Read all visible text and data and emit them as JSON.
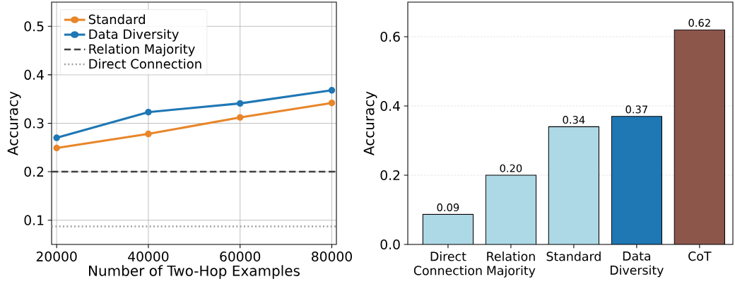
{
  "chart_data": [
    {
      "type": "line",
      "xlabel": "Number of Two-Hop Examples",
      "ylabel": "Accuracy",
      "x": [
        20000,
        40000,
        60000,
        80000
      ],
      "series": [
        {
          "name": "Standard",
          "color": "#e8862a",
          "values": [
            0.249,
            0.278,
            0.312,
            0.342
          ]
        },
        {
          "name": "Data Diversity",
          "color": "#1f77b4",
          "values": [
            0.27,
            0.323,
            0.341,
            0.368
          ]
        }
      ],
      "ref_lines": [
        {
          "axis": "y",
          "value": 0.2,
          "label": "Relation Majority",
          "color": "#404040",
          "line_style": "dashed"
        },
        {
          "axis": "y",
          "value": 0.087,
          "label": "Direct Connection",
          "color": "#a0a0a0",
          "line_style": "dotted"
        }
      ],
      "xlim": [
        18900,
        81000
      ],
      "ylim": [
        0.05,
        0.55
      ],
      "xticks": [
        20000,
        40000,
        60000,
        80000
      ],
      "yticks": [
        0.1,
        0.2,
        0.3,
        0.4,
        0.5
      ],
      "grid": true,
      "legend": "top left",
      "marker": "circle"
    },
    {
      "type": "bar",
      "ylabel": "Accuracy",
      "categories": [
        "Direct Connection",
        "Relation Majority",
        "Standard",
        "Data Diversity",
        "CoT"
      ],
      "values": [
        0.087,
        0.2,
        0.34,
        0.37,
        0.62
      ],
      "colors": [
        "#add8e6",
        "#add8e6",
        "#add8e6",
        "#1f77b4",
        "#8c564b"
      ],
      "value_labels": [
        "0.09",
        "0.20",
        "0.34",
        "0.37",
        "0.62"
      ],
      "ylim": [
        0,
        0.7
      ],
      "yticks": [
        {
          "value": 0,
          "label": "0.0"
        },
        0.2,
        0.4,
        0.6
      ],
      "grid": "y"
    }
  ]
}
